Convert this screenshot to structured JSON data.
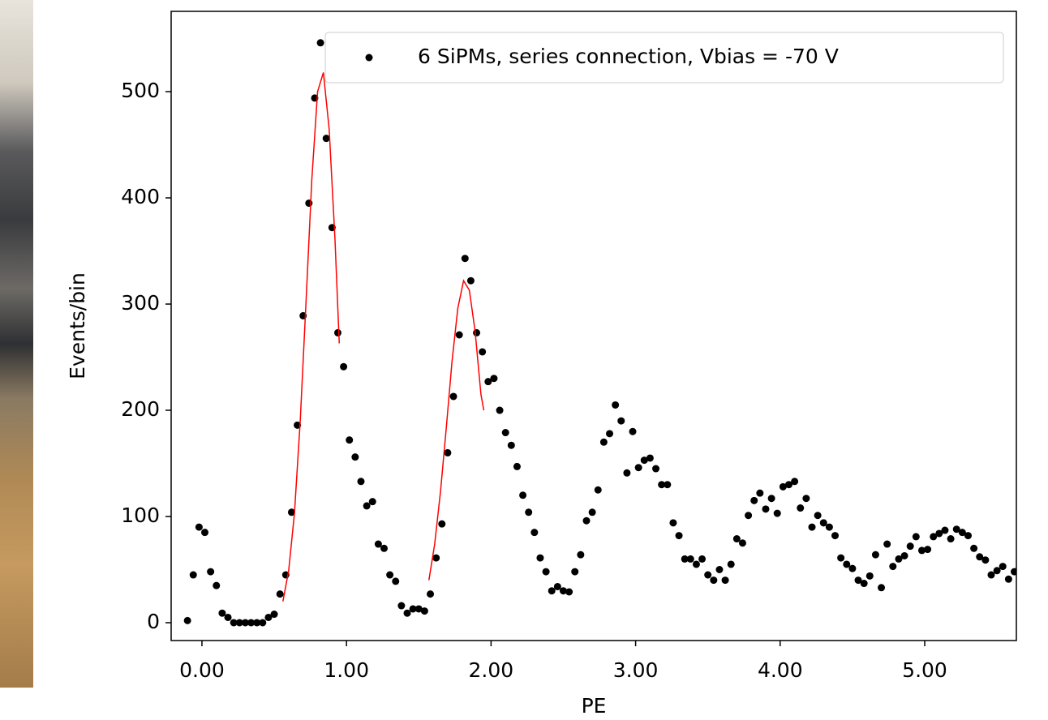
{
  "chart_data": {
    "type": "scatter",
    "xlabel": "PE",
    "ylabel": "Events/bin",
    "xlim": [
      -0.213,
      5.634
    ],
    "ylim": [
      -16.8,
      575.6
    ],
    "xticks": [
      {
        "value": 0,
        "label": "0.00"
      },
      {
        "value": 1,
        "label": "1.00"
      },
      {
        "value": 2,
        "label": "2.00"
      },
      {
        "value": 3,
        "label": "3.00"
      },
      {
        "value": 4,
        "label": "4.00"
      },
      {
        "value": 5,
        "label": "5.00"
      }
    ],
    "yticks": [
      0,
      100,
      200,
      300,
      400,
      500
    ],
    "grid": false,
    "legend": "upper right",
    "series": [
      {
        "name": "6 SiPMs, series connection, Vbias = -70 V",
        "type": "scatter",
        "color": "#000000",
        "x": [
          -0.1,
          -0.06,
          -0.02,
          0.02,
          0.06,
          0.1,
          0.14,
          0.18,
          0.22,
          0.26,
          0.3,
          0.34,
          0.38,
          0.42,
          0.46,
          0.5,
          0.54,
          0.58,
          0.62,
          0.66,
          0.7,
          0.74,
          0.78,
          0.82,
          0.86,
          0.9,
          0.94,
          0.98,
          1.02,
          1.06,
          1.1,
          1.14,
          1.18,
          1.22,
          1.26,
          1.3,
          1.34,
          1.38,
          1.42,
          1.46,
          1.5,
          1.54,
          1.58,
          1.62,
          1.66,
          1.7,
          1.74,
          1.78,
          1.82,
          1.86,
          1.9,
          1.94,
          1.98,
          2.02,
          2.06,
          2.1,
          2.14,
          2.18,
          2.22,
          2.26,
          2.3,
          2.34,
          2.38,
          2.42,
          2.46,
          2.5,
          2.54,
          2.58,
          2.62,
          2.66,
          2.7,
          2.74,
          2.78,
          2.82,
          2.86,
          2.9,
          2.94,
          2.98,
          3.02,
          3.06,
          3.1,
          3.14,
          3.18,
          3.22,
          3.26,
          3.3,
          3.34,
          3.38,
          3.42,
          3.46,
          3.5,
          3.54,
          3.58,
          3.62,
          3.66,
          3.7,
          3.74,
          3.78,
          3.82,
          3.86,
          3.9,
          3.94,
          3.98,
          4.02,
          4.06,
          4.1,
          4.14,
          4.18,
          4.22,
          4.26,
          4.3,
          4.34,
          4.38,
          4.42,
          4.46,
          4.5,
          4.54,
          4.58,
          4.62,
          4.66,
          4.7,
          4.74,
          4.78,
          4.82,
          4.86,
          4.9,
          4.94,
          4.98,
          5.02,
          5.06,
          5.1,
          5.14,
          5.18,
          5.22,
          5.26,
          5.3,
          5.34,
          5.38,
          5.42,
          5.46,
          5.5,
          5.54,
          5.58,
          5.62
        ],
        "values": [
          2,
          45,
          90,
          85,
          48,
          35,
          9,
          5,
          0,
          0,
          0,
          0,
          0,
          0,
          5,
          8,
          27,
          45,
          104,
          186,
          289,
          395,
          494,
          546,
          456,
          372,
          273,
          241,
          172,
          156,
          133,
          110,
          114,
          74,
          70,
          45,
          39,
          16,
          9,
          13,
          13,
          11,
          27,
          61,
          93,
          160,
          213,
          271,
          343,
          322,
          273,
          255,
          227,
          230,
          200,
          179,
          167,
          147,
          120,
          104,
          85,
          61,
          48,
          30,
          34,
          30,
          29,
          48,
          64,
          96,
          104,
          125,
          170,
          178,
          205,
          190,
          141,
          180,
          146,
          153,
          155,
          145,
          130,
          130,
          94,
          82,
          60,
          60,
          55,
          60,
          45,
          40,
          50,
          40,
          55,
          79,
          75,
          101,
          115,
          122,
          107,
          117,
          103,
          128,
          130,
          133,
          108,
          117,
          90,
          101,
          94,
          90,
          82,
          61,
          55,
          51,
          40,
          37,
          44,
          64,
          33,
          74,
          53,
          60,
          63,
          72,
          81,
          68,
          69,
          81,
          84,
          87,
          79,
          88,
          85,
          82,
          70,
          62,
          59,
          45,
          49,
          53,
          41,
          48
        ]
      },
      {
        "type": "line",
        "color": "#ff0000",
        "x": [
          0.56,
          0.6,
          0.64,
          0.68,
          0.72,
          0.76,
          0.8,
          0.84,
          0.88,
          0.92,
          0.95
        ],
        "values": [
          20,
          49,
          103,
          190,
          302,
          417,
          500,
          518,
          465,
          362,
          263
        ]
      },
      {
        "type": "line",
        "color": "#ff0000",
        "x": [
          1.57,
          1.61,
          1.65,
          1.69,
          1.73,
          1.77,
          1.81,
          1.85,
          1.89,
          1.93,
          1.95
        ],
        "values": [
          40,
          74,
          123,
          183,
          246,
          296,
          322,
          313,
          274,
          215,
          200
        ]
      }
    ]
  }
}
